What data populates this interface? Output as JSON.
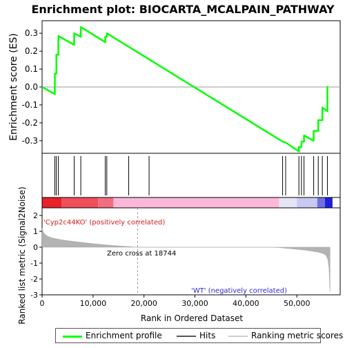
{
  "chart_data": {
    "type": "line",
    "title": "Enrichment plot: BIOCARTA_MCALPAIN_PATHWAY",
    "es_panel": {
      "ylabel": "Enrichment score (ES)",
      "ylim": [
        -0.37,
        0.37
      ],
      "yticks": [
        -0.3,
        -0.2,
        -0.1,
        0.0,
        0.1,
        0.2,
        0.3
      ],
      "ytick_labels": [
        "-0.3",
        "-0.2",
        "-0.1",
        "0.0",
        "0.1",
        "0.2",
        "0.3"
      ],
      "series": [
        {
          "name": "Enrichment profile",
          "color": "#00ff00",
          "x": [
            0,
            2500,
            2500,
            2800,
            2800,
            3200,
            3200,
            6300,
            6300,
            7600,
            7600,
            12400,
            12400,
            12700,
            12700,
            47200,
            47800,
            50400,
            50400,
            50900,
            50900,
            51400,
            51400,
            53300,
            53300,
            54200,
            54200,
            55000,
            55000,
            56000,
            56000
          ],
          "y": [
            0.0,
            -0.04,
            0.075,
            0.075,
            0.18,
            0.18,
            0.285,
            0.235,
            0.3,
            0.28,
            0.335,
            0.25,
            0.28,
            0.28,
            0.3,
            -0.305,
            -0.31,
            -0.36,
            -0.335,
            -0.335,
            -0.305,
            -0.305,
            -0.27,
            -0.3,
            -0.245,
            -0.245,
            -0.185,
            -0.185,
            -0.115,
            -0.135,
            0.005
          ]
        }
      ]
    },
    "hits": {
      "positions": [
        2500,
        2800,
        3200,
        6300,
        7600,
        12400,
        12700,
        17000,
        21000,
        47200,
        47800,
        50400,
        50900,
        51400,
        53300,
        54200,
        55000,
        56000
      ],
      "color": "#000000"
    },
    "ranking_bar": {
      "x": [
        0,
        3800,
        11000,
        14000,
        46500,
        50000,
        54000,
        55500,
        57000
      ],
      "colors": [
        "#e8202a",
        "#f04f5a",
        "#f26d80",
        "#fbb7d8",
        "#e4e4f6",
        "#c8c8f2",
        "#7070e6",
        "#2020d8"
      ]
    },
    "metric_panel": {
      "ylabel": "Ranked list metric (Signal2Noise)",
      "ylim": [
        -3,
        2
      ],
      "yticks": [
        -3,
        -2,
        -1,
        0,
        1,
        2
      ],
      "ytick_labels": [
        "-3",
        "-2",
        "-1",
        "0",
        "1",
        "2"
      ],
      "x": [
        0,
        300,
        1000,
        2000,
        4000,
        7000,
        10000,
        14000,
        18744,
        30000,
        44000,
        46500,
        48000,
        50000,
        52000,
        54000,
        55000,
        55700,
        56100,
        56300,
        56500
      ],
      "y": [
        1.2,
        0.9,
        0.7,
        0.58,
        0.45,
        0.33,
        0.22,
        0.1,
        0.0,
        0.0,
        0.0,
        -0.02,
        -0.07,
        -0.13,
        -0.2,
        -0.3,
        -0.38,
        -0.5,
        -0.8,
        -1.3,
        -2.8
      ],
      "zero_cross_label": "Zero cross at 18744",
      "zero_cross_x": 18744,
      "positive_label": "'Cyp2c44KO' (positively correlated)",
      "negative_label": "'WT' (negatively correlated)"
    },
    "xlabel": "Rank in Ordered Dataset",
    "xlim": [
      0,
      58500
    ],
    "xticks": [
      0,
      10000,
      20000,
      30000,
      40000,
      50000
    ],
    "xtick_labels": [
      "0",
      "10,000",
      "20,000",
      "30,000",
      "40,000",
      "50,000"
    ],
    "legend": [
      {
        "label": "Enrichment profile",
        "color": "#00ff00"
      },
      {
        "label": "Hits",
        "color": "#555555"
      },
      {
        "label": "Ranking metric scores",
        "color": "#cccccc"
      }
    ],
    "grid": false,
    "legend_position": "bottom"
  }
}
